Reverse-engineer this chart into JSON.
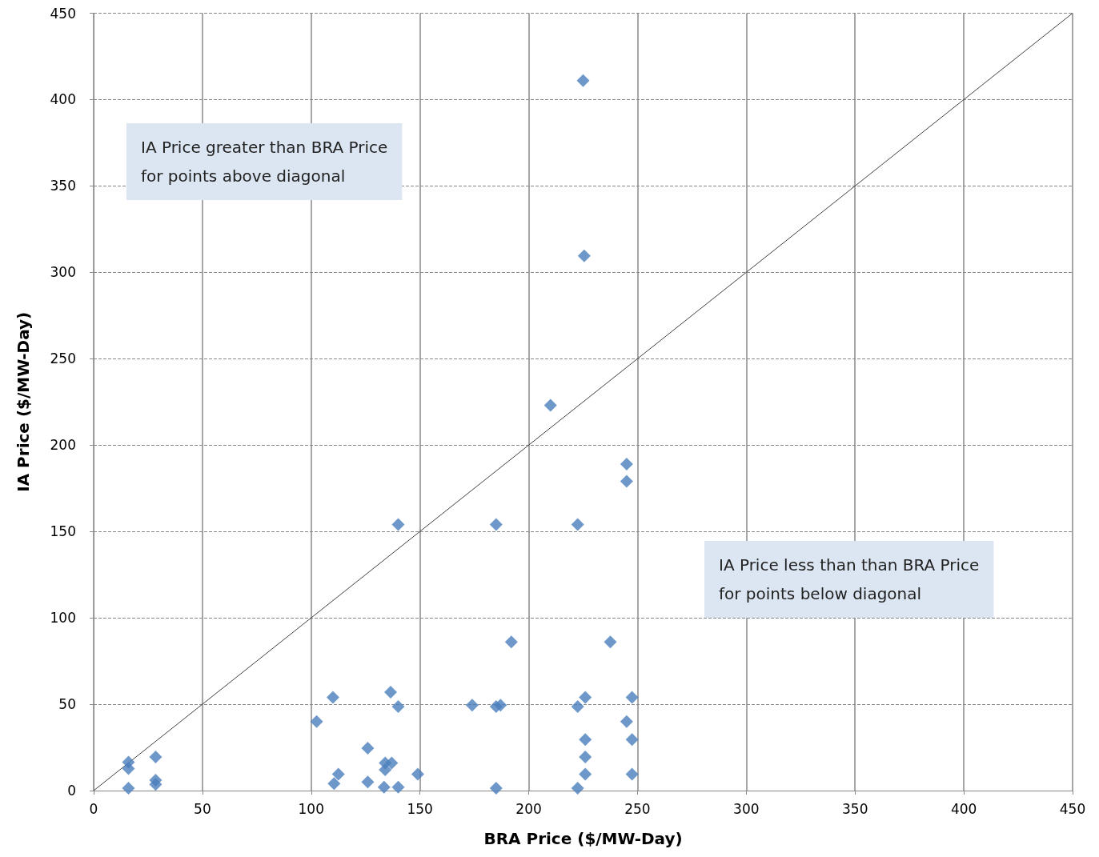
{
  "chart_data": {
    "type": "scatter",
    "xlabel": "BRA Price ($/MW-Day)",
    "ylabel": "IA Price ($/MW-Day)",
    "xlim": [
      0,
      450
    ],
    "xticks": [
      0,
      50,
      100,
      150,
      200,
      250,
      300,
      350,
      400,
      450
    ],
    "ylim": [
      0,
      450
    ],
    "yticks": [
      0,
      50,
      100,
      150,
      200,
      250,
      300,
      350,
      400,
      450
    ],
    "grid": true,
    "marker": "diamond",
    "annotations": [
      "IA Price greater than BRA Price\nfor points above diagonal",
      "IA Price less than than BRA Price\nfor points below diagonal"
    ],
    "series": [
      {
        "color": "#4a7ebb",
        "x": [
          225,
          225.5,
          210,
          245,
          245,
          140,
          185,
          222.5,
          192,
          237.5,
          110,
          226,
          247.5,
          136.5,
          140,
          102.5,
          174,
          185,
          187,
          222.5,
          245,
          226,
          247.5,
          126,
          226,
          28.5,
          16,
          16,
          28.5,
          28.5,
          16,
          110.5,
          112.5,
          126,
          134,
          137,
          134,
          133.5,
          140,
          149,
          185,
          222.5,
          226,
          247.5
        ],
        "values": [
          411,
          309.5,
          223,
          189,
          179,
          154,
          154,
          154,
          86,
          86,
          54,
          54,
          54,
          57,
          48.6,
          40,
          49.5,
          48.6,
          49.5,
          48.6,
          40,
          29.5,
          29.5,
          24.5,
          19.5,
          19.5,
          16.4,
          12.7,
          6,
          3.6,
          1.4,
          4,
          9.5,
          5,
          16,
          16,
          12,
          2,
          2,
          9.5,
          1.4,
          1.4,
          9.5,
          9.5
        ]
      },
      {
        "type": "line",
        "color": "#404040",
        "marker": "none",
        "x": [
          0,
          450
        ],
        "values": [
          0,
          450
        ]
      }
    ]
  }
}
